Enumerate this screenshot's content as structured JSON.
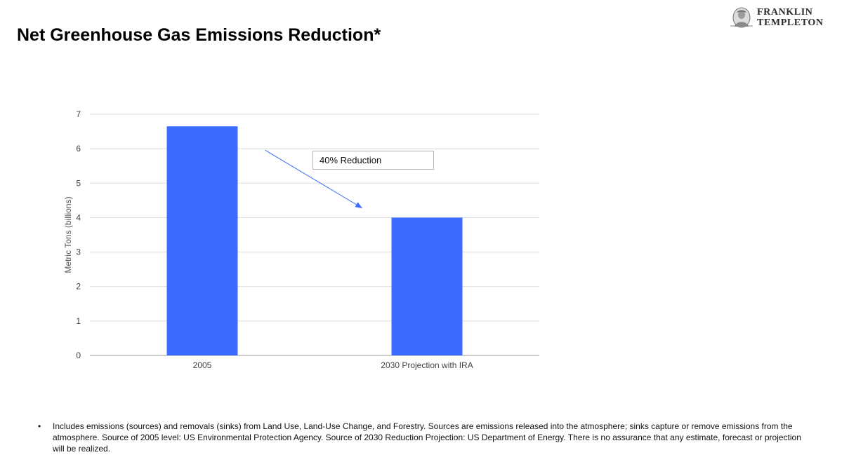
{
  "page": {
    "title": "Net Greenhouse Gas Emissions Reduction*"
  },
  "logo": {
    "line1": "FRANKLIN",
    "line2": "TEMPLETON",
    "icon": "franklin-portrait-icon"
  },
  "chart_data": {
    "type": "bar",
    "categories": [
      "2005",
      "2030 Projection with IRA"
    ],
    "values": [
      6.65,
      4.0
    ],
    "ylabel": "Metric Tons (billions)",
    "xlabel": "",
    "ylim": [
      0,
      7
    ],
    "yticks": [
      0,
      1,
      2,
      3,
      4,
      5,
      6,
      7
    ],
    "grid": true,
    "legend": "none",
    "bar_color": "#3c6cff",
    "annotation": {
      "text": "40% Reduction",
      "arrow_from_category": "2005",
      "arrow_to_category": "2030 Projection with IRA"
    }
  },
  "footnote": {
    "bullet": "•",
    "text": "Includes emissions (sources) and removals (sinks) from Land Use, Land-Use Change, and Forestry. Sources are emissions released into the atmosphere; sinks capture or remove emissions from the atmosphere. Source of 2005 level: US Environmental Protection Agency. Source of 2030 Reduction Projection: US Department of Energy. There is no assurance that any estimate, forecast or projection will be realized."
  }
}
